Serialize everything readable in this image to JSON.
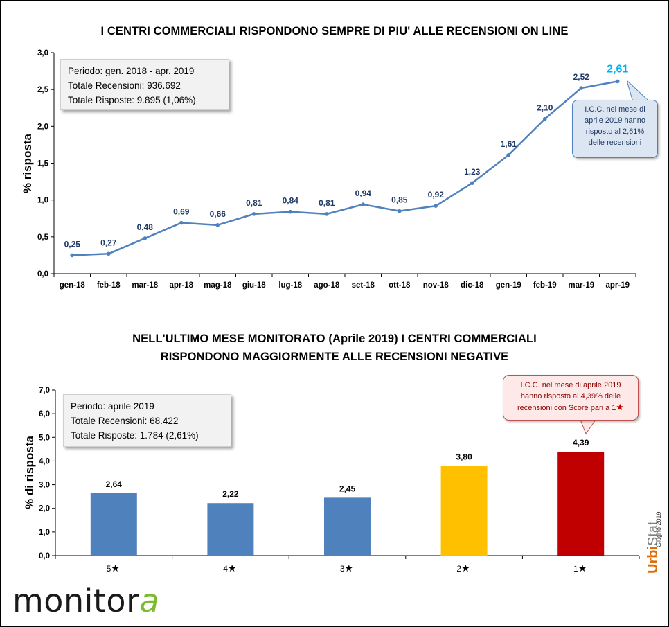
{
  "chart_data": [
    {
      "type": "line",
      "title": "I CENTRI COMMERCIALI RISPONDONO SEMPRE DI PIU' ALLE RECENSIONI ON LINE",
      "xlabel": "",
      "ylabel": "% risposta",
      "ylim": [
        0,
        3.0
      ],
      "yticks": [
        "0,0",
        "0,5",
        "1,0",
        "1,5",
        "2,0",
        "2,5",
        "3,0"
      ],
      "categories": [
        "gen-18",
        "feb-18",
        "mar-18",
        "apr-18",
        "mag-18",
        "giu-18",
        "lug-18",
        "ago-18",
        "set-18",
        "ott-18",
        "nov-18",
        "dic-18",
        "gen-19",
        "feb-19",
        "mar-19",
        "apr-19"
      ],
      "values": [
        0.25,
        0.27,
        0.48,
        0.69,
        0.66,
        0.81,
        0.84,
        0.81,
        0.94,
        0.85,
        0.92,
        1.23,
        1.61,
        2.1,
        2.52,
        2.61
      ],
      "labels": [
        "0,25",
        "0,27",
        "0,48",
        "0,69",
        "0,66",
        "0,81",
        "0,84",
        "0,81",
        "0,94",
        "0,85",
        "0,92",
        "1,23",
        "1,61",
        "2,10",
        "2,52",
        "2,61"
      ],
      "grid": false,
      "line_color": "#4f81bd",
      "highlight_color": "#00b0f0"
    },
    {
      "type": "bar",
      "title": "NELL'ULTIMO MESE MONITORATO (Aprile 2019) I CENTRI COMMERCIALI RISPONDONO MAGGIORMENTE ALLE RECENSIONI NEGATIVE",
      "xlabel": "",
      "ylabel": "% di risposta",
      "ylim": [
        0,
        7.0
      ],
      "yticks": [
        "0,0",
        "1,0",
        "2,0",
        "3,0",
        "4,0",
        "5,0",
        "6,0",
        "7,0"
      ],
      "categories": [
        "5",
        "4",
        "3",
        "2",
        "1"
      ],
      "values": [
        2.64,
        2.22,
        2.45,
        3.8,
        4.39
      ],
      "labels": [
        "2,64",
        "2,22",
        "2,45",
        "3,80",
        "4,39"
      ],
      "colors": [
        "#4f81bd",
        "#4f81bd",
        "#4f81bd",
        "#ffc000",
        "#c00000"
      ],
      "grid": false
    }
  ],
  "header": {
    "title1": "I CENTRI COMMERCIALI  RISPONDONO  SEMPRE  DI PIU'  ALLE  RECENSIONI  ON  LINE",
    "title2a": "NELL'ULTIMO  MESE  MONITORATO  (Aprile 2019) I  CENTRI  COMMERCIALI",
    "title2b": "RISPONDONO  MAGGIORMENTE  ALLE  RECENSIONI  NEGATIVE"
  },
  "box1": {
    "periodo": "Periodo:  gen. 2018 - apr. 2019",
    "recensioni": "Totale Recensioni: 936.692",
    "risposte": "Totale Risposte: 9.895 (1,06%)"
  },
  "box2": {
    "periodo": "Periodo:  aprile 2019",
    "recensioni": "Totale Recensioni: 68.422",
    "risposte": "Totale Risposte: 1.784 (2,61%)"
  },
  "callout1": {
    "line1": "I.C.C. nel mese di",
    "line2": "aprile 2019 hanno",
    "line3": "risposto al 2,61%",
    "line4": "delle recensioni"
  },
  "callout2": {
    "line1": "I.C.C. nel mese di aprile 2019",
    "line2": "hanno risposto al 4,39% delle",
    "line3": "recensioni con Score pari a 1"
  },
  "labels": {
    "ylabel1": "% risposta",
    "ylabel2": "% di risposta"
  },
  "logo": {
    "main": "monitor",
    "accent": "a"
  },
  "brand": {
    "urbi": "Urbi",
    "stat": "Stat",
    "date": "Giugno 2019"
  },
  "star_icon": "star-icon",
  "colors": {
    "line": "#4f81bd",
    "highlight": "#00b0f0",
    "bar_default": "#4f81bd",
    "bar_2": "#ffc000",
    "bar_1": "#c00000"
  }
}
